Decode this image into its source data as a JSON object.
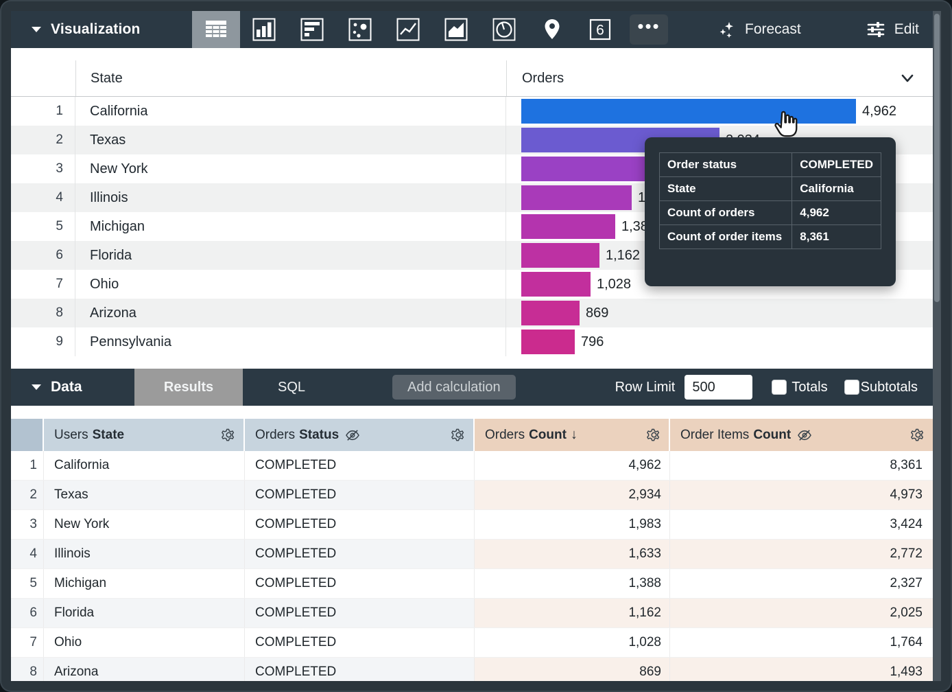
{
  "viz_toolbar": {
    "title": "Visualization",
    "forecast_label": "Forecast",
    "edit_label": "Edit",
    "icons": [
      "table-chart",
      "column-chart",
      "horizontal-bar-chart",
      "scatter-plot",
      "line-chart",
      "area-chart",
      "pie-chart",
      "map-pin",
      "single-value",
      "more-options"
    ],
    "selected_icon": "table-chart"
  },
  "viz_table": {
    "state_header": "State",
    "orders_header": "Orders",
    "max_value": 4962,
    "bar_area_width": 488,
    "rows": [
      {
        "n": "1",
        "state": "California",
        "value": 4962,
        "label": "4,962",
        "color": "#1e72e0"
      },
      {
        "n": "2",
        "state": "Texas",
        "value": 2934,
        "label": "2,934",
        "color": "#6b5bd0"
      },
      {
        "n": "3",
        "state": "New York",
        "value": 1983,
        "label": "1,983",
        "color": "#9a41c4"
      },
      {
        "n": "4",
        "state": "Illinois",
        "value": 1633,
        "label": "1,633",
        "color": "#a93ab9"
      },
      {
        "n": "5",
        "state": "Michigan",
        "value": 1388,
        "label": "1,388",
        "color": "#b434ae"
      },
      {
        "n": "6",
        "state": "Florida",
        "value": 1162,
        "label": "1,162",
        "color": "#bd31a3"
      },
      {
        "n": "7",
        "state": "Ohio",
        "value": 1028,
        "label": "1,028",
        "color": "#c22f9d"
      },
      {
        "n": "8",
        "state": "Arizona",
        "value": 869,
        "label": "869",
        "color": "#c72d95"
      },
      {
        "n": "9",
        "state": "Pennsylvania",
        "value": 796,
        "label": "796",
        "color": "#cb2b8e"
      }
    ]
  },
  "tooltip": {
    "rows": [
      {
        "label": "Order status",
        "value": "COMPLETED"
      },
      {
        "label": "State",
        "value": "California"
      },
      {
        "label": "Count of orders",
        "value": "4,962"
      },
      {
        "label": "Count of order items",
        "value": "8,361"
      }
    ]
  },
  "data_toolbar": {
    "title": "Data",
    "tab_results": "Results",
    "tab_sql": "SQL",
    "add_calculation": "Add calculation",
    "row_limit_label": "Row Limit",
    "row_limit_value": "500",
    "totals_label": "Totals",
    "subtotals_label": "Subtotals",
    "totals_checked": false,
    "subtotals_checked": false
  },
  "data_table": {
    "headers": [
      {
        "prefix": "Users",
        "bold": "State"
      },
      {
        "prefix": "Orders",
        "bold": "Status",
        "hidden": true
      },
      {
        "prefix": "Orders",
        "bold": "Count",
        "sort": "↓"
      },
      {
        "prefix": "Order Items",
        "bold": "Count",
        "hidden": true
      }
    ],
    "rows": [
      {
        "n": "1",
        "state": "California",
        "status": "COMPLETED",
        "orders": "4,962",
        "items": "8,361"
      },
      {
        "n": "2",
        "state": "Texas",
        "status": "COMPLETED",
        "orders": "2,934",
        "items": "4,973"
      },
      {
        "n": "3",
        "state": "New York",
        "status": "COMPLETED",
        "orders": "1,983",
        "items": "3,424"
      },
      {
        "n": "4",
        "state": "Illinois",
        "status": "COMPLETED",
        "orders": "1,633",
        "items": "2,772"
      },
      {
        "n": "5",
        "state": "Michigan",
        "status": "COMPLETED",
        "orders": "1,388",
        "items": "2,327"
      },
      {
        "n": "6",
        "state": "Florida",
        "status": "COMPLETED",
        "orders": "1,162",
        "items": "2,025"
      },
      {
        "n": "7",
        "state": "Ohio",
        "status": "COMPLETED",
        "orders": "1,028",
        "items": "1,764"
      },
      {
        "n": "8",
        "state": "Arizona",
        "status": "COMPLETED",
        "orders": "869",
        "items": "1,493"
      }
    ]
  },
  "colors": {
    "toolbar_bg": "#2b3944",
    "selected_icon_bg": "#8e979e",
    "results_tab_bg": "#9b9b9b",
    "tooltip_bg": "#28323a",
    "dim_header_bg": "#c7d4de",
    "measure_header_bg": "#ebd2be",
    "bar_blue": "#1e72e0",
    "bar_pink": "#cb2b8e"
  }
}
